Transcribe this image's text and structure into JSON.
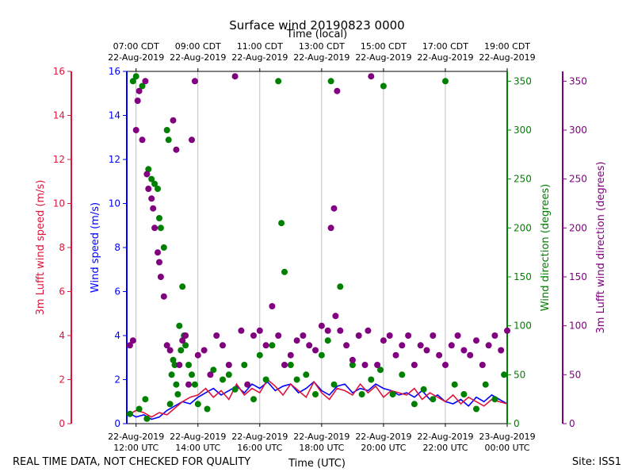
{
  "chart_data": {
    "type": "scatter",
    "title": "Surface wind 20190823 0000",
    "top_axis_label": "Time (local)",
    "xlabel": "Time (UTC)",
    "xlim_hours_utc": [
      11.7,
      24.0
    ],
    "x_ticks_utc": [
      {
        "h": 12,
        "line1": "22-Aug-2019",
        "line2": "12:00 UTC"
      },
      {
        "h": 14,
        "line1": "22-Aug-2019",
        "line2": "14:00 UTC"
      },
      {
        "h": 16,
        "line1": "22-Aug-2019",
        "line2": "16:00 UTC"
      },
      {
        "h": 18,
        "line1": "22-Aug-2019",
        "line2": "18:00 UTC"
      },
      {
        "h": 20,
        "line1": "22-Aug-2019",
        "line2": "20:00 UTC"
      },
      {
        "h": 22,
        "line1": "22-Aug-2019",
        "line2": "22:00 UTC"
      },
      {
        "h": 24,
        "line1": "23-Aug-2019",
        "line2": "00:00 UTC"
      }
    ],
    "x_ticks_local": [
      {
        "h": 12,
        "line1": "07:00 CDT",
        "line2": "22-Aug-2019"
      },
      {
        "h": 14,
        "line1": "09:00 CDT",
        "line2": "22-Aug-2019"
      },
      {
        "h": 16,
        "line1": "11:00 CDT",
        "line2": "22-Aug-2019"
      },
      {
        "h": 18,
        "line1": "13:00 CDT",
        "line2": "22-Aug-2019"
      },
      {
        "h": 20,
        "line1": "15:00 CDT",
        "line2": "22-Aug-2019"
      },
      {
        "h": 22,
        "line1": "17:00 CDT",
        "line2": "22-Aug-2019"
      },
      {
        "h": 24,
        "line1": "19:00 CDT",
        "line2": "22-Aug-2019"
      }
    ],
    "axes": {
      "lufft_speed": {
        "label": "3m Lufft wind speed (m/s)",
        "range": [
          0,
          16
        ],
        "ticks": [
          0,
          2,
          4,
          6,
          8,
          10,
          12,
          14,
          16
        ],
        "color": "#dc143c"
      },
      "speed": {
        "label": "Wind speed (m/s)",
        "range": [
          0,
          16
        ],
        "ticks": [
          0,
          2,
          4,
          6,
          8,
          10,
          12,
          14,
          16
        ],
        "color": "#0000ff"
      },
      "direction": {
        "label": "Wind direction (degrees)",
        "range": [
          0,
          360
        ],
        "ticks": [
          0,
          50,
          100,
          150,
          200,
          250,
          300,
          350
        ],
        "color": "#008000"
      },
      "lufft_direction": {
        "label": "3m Lufft wind direction (degrees)",
        "range": [
          0,
          360
        ],
        "ticks": [
          0,
          50,
          100,
          150,
          200,
          250,
          300,
          350
        ],
        "color": "#800080"
      }
    },
    "series": [
      {
        "name": "Wind speed",
        "type": "line",
        "color": "#0000ff",
        "x": [
          11.75,
          12.0,
          12.25,
          12.5,
          12.75,
          13.0,
          13.25,
          13.5,
          13.75,
          14.0,
          14.25,
          14.5,
          14.75,
          15.0,
          15.25,
          15.5,
          15.75,
          16.0,
          16.25,
          16.5,
          16.75,
          17.0,
          17.25,
          17.5,
          17.75,
          18.0,
          18.25,
          18.5,
          18.75,
          19.0,
          19.25,
          19.5,
          19.75,
          20.0,
          20.25,
          20.5,
          20.75,
          21.0,
          21.25,
          21.5,
          21.75,
          22.0,
          22.25,
          22.5,
          22.75,
          23.0,
          23.25,
          23.5,
          23.75,
          24.0
        ],
        "values": [
          0.5,
          0.3,
          0.4,
          0.2,
          0.3,
          0.6,
          0.8,
          1.0,
          0.9,
          1.2,
          1.4,
          1.6,
          1.3,
          1.5,
          1.7,
          1.4,
          1.8,
          1.6,
          1.9,
          1.5,
          1.7,
          1.8,
          1.4,
          1.6,
          1.9,
          1.5,
          1.3,
          1.7,
          1.8,
          1.4,
          1.6,
          1.5,
          1.8,
          1.6,
          1.5,
          1.3,
          1.4,
          1.2,
          1.5,
          1.1,
          1.3,
          1.0,
          0.9,
          1.1,
          0.8,
          1.2,
          1.0,
          1.3,
          1.1,
          0.9
        ]
      },
      {
        "name": "3m Lufft wind speed",
        "type": "line",
        "color": "#dc143c",
        "x": [
          11.75,
          12.0,
          12.25,
          12.5,
          12.75,
          13.0,
          13.25,
          13.5,
          13.75,
          14.0,
          14.25,
          14.5,
          14.75,
          15.0,
          15.25,
          15.5,
          15.75,
          16.0,
          16.25,
          16.5,
          16.75,
          17.0,
          17.25,
          17.5,
          17.75,
          18.0,
          18.25,
          18.5,
          18.75,
          19.0,
          19.25,
          19.5,
          19.75,
          20.0,
          20.25,
          20.5,
          20.75,
          21.0,
          21.25,
          21.5,
          21.75,
          22.0,
          22.25,
          22.5,
          22.75,
          23.0,
          23.25,
          23.5,
          23.75,
          24.0
        ],
        "values": [
          0.4,
          0.6,
          0.5,
          0.3,
          0.5,
          0.4,
          0.7,
          1.0,
          1.2,
          1.3,
          1.6,
          1.2,
          1.5,
          1.1,
          1.8,
          1.3,
          1.6,
          1.4,
          2.0,
          1.7,
          1.3,
          1.8,
          1.5,
          1.2,
          1.9,
          1.4,
          1.1,
          1.6,
          1.5,
          1.3,
          1.8,
          1.4,
          1.7,
          1.2,
          1.5,
          1.4,
          1.3,
          1.6,
          1.1,
          1.4,
          1.2,
          1.0,
          1.3,
          0.9,
          1.2,
          1.0,
          0.8,
          1.1,
          1.0,
          0.9
        ]
      },
      {
        "name": "Wind direction",
        "type": "scatter",
        "color": "#008000",
        "x": [
          11.8,
          11.9,
          12.0,
          12.1,
          12.2,
          12.3,
          12.35,
          12.4,
          12.5,
          12.6,
          12.7,
          12.75,
          12.8,
          12.9,
          13.0,
          13.05,
          13.1,
          13.15,
          13.2,
          13.25,
          13.3,
          13.35,
          13.4,
          13.45,
          13.5,
          13.55,
          13.6,
          13.7,
          13.8,
          13.9,
          14.0,
          14.3,
          14.5,
          14.8,
          15.0,
          15.2,
          15.5,
          15.8,
          16.0,
          16.2,
          16.4,
          16.6,
          16.7,
          16.8,
          17.0,
          17.2,
          17.5,
          17.8,
          18.0,
          18.2,
          18.3,
          18.4,
          18.6,
          19.0,
          19.3,
          19.6,
          19.9,
          20.0,
          20.3,
          20.6,
          21.0,
          21.3,
          21.6,
          22.0,
          22.3,
          22.6,
          23.0,
          23.3,
          23.6,
          23.9
        ],
        "values": [
          10,
          350,
          355,
          15,
          345,
          25,
          5,
          260,
          250,
          245,
          240,
          210,
          200,
          180,
          300,
          290,
          20,
          50,
          65,
          60,
          40,
          30,
          100,
          75,
          140,
          90,
          80,
          60,
          50,
          40,
          20,
          15,
          55,
          45,
          50,
          35,
          60,
          25,
          70,
          45,
          80,
          350,
          205,
          155,
          60,
          45,
          50,
          30,
          70,
          85,
          350,
          40,
          140,
          60,
          30,
          45,
          55,
          345,
          30,
          50,
          20,
          35,
          25,
          350,
          40,
          30,
          15,
          40,
          25,
          50
        ]
      },
      {
        "name": "3m Lufft wind direction",
        "type": "scatter",
        "color": "#800080",
        "x": [
          11.8,
          11.9,
          12.0,
          12.05,
          12.1,
          12.2,
          12.3,
          12.35,
          12.4,
          12.5,
          12.55,
          12.6,
          12.7,
          12.75,
          12.8,
          12.9,
          13.0,
          13.1,
          13.2,
          13.3,
          13.4,
          13.5,
          13.6,
          13.7,
          13.8,
          13.9,
          14.0,
          14.2,
          14.4,
          14.6,
          14.8,
          15.0,
          15.2,
          15.4,
          15.6,
          15.8,
          16.0,
          16.2,
          16.4,
          16.6,
          16.8,
          17.0,
          17.2,
          17.4,
          17.6,
          17.8,
          18.0,
          18.2,
          18.3,
          18.4,
          18.45,
          18.5,
          18.6,
          18.8,
          19.0,
          19.2,
          19.4,
          19.5,
          19.6,
          19.8,
          20.0,
          20.2,
          20.4,
          20.6,
          20.8,
          21.0,
          21.2,
          21.4,
          21.6,
          21.8,
          22.0,
          22.2,
          22.4,
          22.6,
          22.8,
          23.0,
          23.2,
          23.4,
          23.6,
          23.8,
          24.0
        ],
        "values": [
          80,
          85,
          300,
          330,
          340,
          290,
          350,
          255,
          240,
          230,
          220,
          200,
          175,
          165,
          150,
          130,
          80,
          75,
          310,
          280,
          60,
          85,
          90,
          40,
          290,
          350,
          70,
          75,
          50,
          90,
          80,
          60,
          355,
          95,
          40,
          90,
          95,
          80,
          120,
          90,
          60,
          70,
          85,
          90,
          80,
          75,
          100,
          95,
          200,
          220,
          110,
          340,
          95,
          80,
          65,
          90,
          60,
          95,
          355,
          60,
          85,
          90,
          70,
          80,
          90,
          60,
          80,
          75,
          90,
          70,
          60,
          80,
          90,
          75,
          70,
          85,
          60,
          80,
          90,
          75,
          95
        ]
      }
    ],
    "grid_x": true,
    "grid_y": false
  },
  "footer": {
    "left": "REAL TIME DATA, NOT CHECKED FOR QUALITY",
    "right": "Site: ISS1"
  }
}
